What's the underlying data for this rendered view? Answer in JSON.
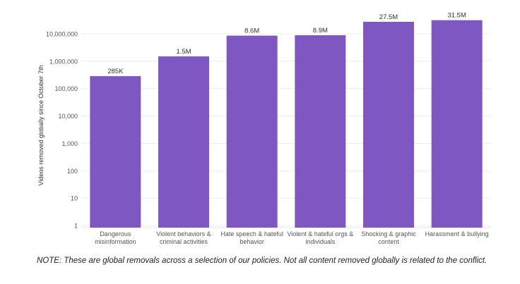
{
  "chart_data": {
    "type": "bar",
    "ylabel": "Videos removed globally since October 7th",
    "yscale": "log",
    "ylim": [
      1,
      30000000
    ],
    "grid": true,
    "yticks": [
      1,
      10,
      100,
      1000,
      10000,
      100000,
      1000000,
      10000000
    ],
    "ytick_labels": [
      "1",
      "10",
      "100",
      "1,000",
      "10,000",
      "100,000",
      "1,000,000",
      "10,000,000"
    ],
    "categories": [
      [
        "Dangerous",
        "misinformation"
      ],
      [
        "Violent behaviors &",
        "criminal activities"
      ],
      [
        "Hate speech & hateful",
        "behavior"
      ],
      [
        "Violent & hateful orgs &",
        "individuals"
      ],
      [
        "Shocking & graphic",
        "content"
      ],
      [
        "Harassment & bullying"
      ]
    ],
    "values": [
      285000,
      1500000,
      8600000,
      8900000,
      27500000,
      31500000
    ],
    "data_labels": [
      "285K",
      "1.5M",
      "8.6M",
      "8.9M",
      "27.5M",
      "31.5M"
    ],
    "bar_color": "#7e57c2"
  },
  "note": "NOTE: These are global removals across a selection of our policies. Not all content removed globally is related to the conflict."
}
